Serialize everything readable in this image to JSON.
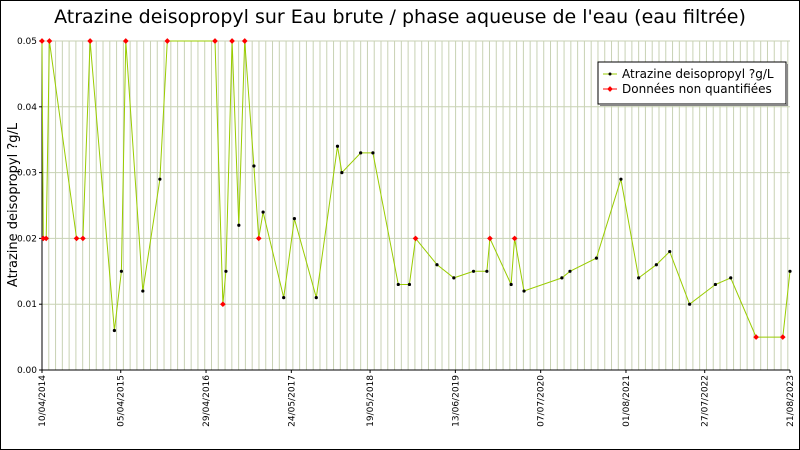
{
  "chart_data": {
    "type": "line",
    "title": "Atrazine deisopropyl sur Eau brute / phase aqueuse de l'eau (eau filtrée)",
    "ylabel": "Atrazine deisopropyl ?g/L",
    "xlabel": "",
    "ylim": [
      0,
      0.05
    ],
    "xlim": [
      "2014-04-10",
      "2023-08-21"
    ],
    "y_ticks": [
      "0.00",
      "0.01",
      "0.02",
      "0.03",
      "0.04",
      "0.05"
    ],
    "x_ticks": [
      {
        "label": "10/04/2014",
        "date": "2014-04-10"
      },
      {
        "label": "05/04/2015",
        "date": "2015-04-05"
      },
      {
        "label": "29/04/2016",
        "date": "2016-04-29"
      },
      {
        "label": "24/05/2017",
        "date": "2017-05-24"
      },
      {
        "label": "19/05/2018",
        "date": "2018-05-19"
      },
      {
        "label": "13/06/2019",
        "date": "2019-06-13"
      },
      {
        "label": "07/07/2020",
        "date": "2020-07-07"
      },
      {
        "label": "01/08/2021",
        "date": "2021-08-01"
      },
      {
        "label": "27/07/2022",
        "date": "2022-07-27"
      },
      {
        "label": "21/08/2023",
        "date": "2023-08-21"
      }
    ],
    "grid": true,
    "legend_position": "top-right",
    "series": [
      {
        "name": "Atrazine deisopropyl ?g/L",
        "color": "#99cc00",
        "marker_color": "#000000"
      },
      {
        "name": "Données non quantifiées",
        "marker_color": "#ff0000"
      }
    ],
    "points": [
      {
        "x": "2014-04-10",
        "y": 0.05,
        "nq": true
      },
      {
        "x": "2014-04-16",
        "y": 0.02,
        "nq": true
      },
      {
        "x": "2014-04-29",
        "y": 0.02,
        "nq": true
      },
      {
        "x": "2014-05-14",
        "y": 0.05,
        "nq": true
      },
      {
        "x": "2014-09-15",
        "y": 0.02,
        "nq": true
      },
      {
        "x": "2014-10-14",
        "y": 0.02,
        "nq": true
      },
      {
        "x": "2014-11-16",
        "y": 0.05,
        "nq": true
      },
      {
        "x": "2015-03-07",
        "y": 0.006,
        "nq": false
      },
      {
        "x": "2015-04-08",
        "y": 0.015,
        "nq": false
      },
      {
        "x": "2015-04-28",
        "y": 0.05,
        "nq": true
      },
      {
        "x": "2015-07-15",
        "y": 0.012,
        "nq": false
      },
      {
        "x": "2015-10-01",
        "y": 0.029,
        "nq": false
      },
      {
        "x": "2015-11-04",
        "y": 0.05,
        "nq": true
      },
      {
        "x": "2016-06-09",
        "y": 0.05,
        "nq": true
      },
      {
        "x": "2016-07-15",
        "y": 0.01,
        "nq": true
      },
      {
        "x": "2016-07-29",
        "y": 0.015,
        "nq": false
      },
      {
        "x": "2016-08-26",
        "y": 0.05,
        "nq": true
      },
      {
        "x": "2016-09-26",
        "y": 0.022,
        "nq": false
      },
      {
        "x": "2016-10-23",
        "y": 0.05,
        "nq": true
      },
      {
        "x": "2016-12-04",
        "y": 0.031,
        "nq": false
      },
      {
        "x": "2016-12-26",
        "y": 0.02,
        "nq": true
      },
      {
        "x": "2017-01-15",
        "y": 0.024,
        "nq": false
      },
      {
        "x": "2017-04-19",
        "y": 0.011,
        "nq": false
      },
      {
        "x": "2017-06-07",
        "y": 0.023,
        "nq": false
      },
      {
        "x": "2017-09-15",
        "y": 0.011,
        "nq": false
      },
      {
        "x": "2017-12-21",
        "y": 0.034,
        "nq": false
      },
      {
        "x": "2018-01-10",
        "y": 0.03,
        "nq": false
      },
      {
        "x": "2018-04-06",
        "y": 0.033,
        "nq": false
      },
      {
        "x": "2018-06-01",
        "y": 0.033,
        "nq": false
      },
      {
        "x": "2018-09-25",
        "y": 0.013,
        "nq": false
      },
      {
        "x": "2018-11-15",
        "y": 0.013,
        "nq": false
      },
      {
        "x": "2018-12-13",
        "y": 0.02,
        "nq": true
      },
      {
        "x": "2019-03-21",
        "y": 0.016,
        "nq": false
      },
      {
        "x": "2019-06-06",
        "y": 0.014,
        "nq": false
      },
      {
        "x": "2019-09-04",
        "y": 0.015,
        "nq": false
      },
      {
        "x": "2019-11-04",
        "y": 0.015,
        "nq": false
      },
      {
        "x": "2019-11-18",
        "y": 0.02,
        "nq": true
      },
      {
        "x": "2020-02-23",
        "y": 0.013,
        "nq": false
      },
      {
        "x": "2020-03-10",
        "y": 0.02,
        "nq": true
      },
      {
        "x": "2020-04-22",
        "y": 0.012,
        "nq": false
      },
      {
        "x": "2020-10-12",
        "y": 0.014,
        "nq": false
      },
      {
        "x": "2020-11-18",
        "y": 0.015,
        "nq": false
      },
      {
        "x": "2021-03-19",
        "y": 0.017,
        "nq": false
      },
      {
        "x": "2021-07-09",
        "y": 0.029,
        "nq": false
      },
      {
        "x": "2021-09-28",
        "y": 0.014,
        "nq": false
      },
      {
        "x": "2021-12-18",
        "y": 0.016,
        "nq": false
      },
      {
        "x": "2022-02-17",
        "y": 0.018,
        "nq": false
      },
      {
        "x": "2022-05-19",
        "y": 0.01,
        "nq": false
      },
      {
        "x": "2022-09-14",
        "y": 0.013,
        "nq": false
      },
      {
        "x": "2022-11-23",
        "y": 0.014,
        "nq": false
      },
      {
        "x": "2023-03-19",
        "y": 0.005,
        "nq": true
      },
      {
        "x": "2023-07-19",
        "y": 0.005,
        "nq": true
      },
      {
        "x": "2023-08-21",
        "y": 0.015,
        "nq": false
      }
    ]
  }
}
